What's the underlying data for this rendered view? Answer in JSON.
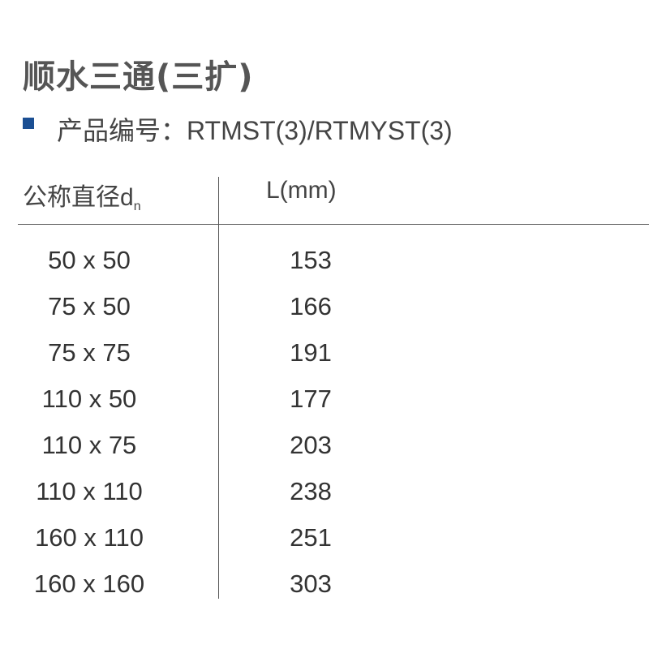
{
  "title": "顺水三通(三扩)",
  "product_code_line": "产品编号：RTMST(3)/RTMYST(3)",
  "accent_color": "#1b4f93",
  "table": {
    "headers": {
      "diameter": "公称直径d",
      "diameter_sub": "n",
      "length": "L(mm)"
    },
    "rows": [
      {
        "dn": "50 x 50",
        "L": "153"
      },
      {
        "dn": "75 x 50",
        "L": "166"
      },
      {
        "dn": "75 x 75",
        "L": "191"
      },
      {
        "dn": "110 x 50",
        "L": "177"
      },
      {
        "dn": "110 x 75",
        "L": "203"
      },
      {
        "dn": "110 x 110",
        "L": "238"
      },
      {
        "dn": "160 x 110",
        "L": "251"
      },
      {
        "dn": "160 x 160",
        "L": "303"
      }
    ]
  }
}
